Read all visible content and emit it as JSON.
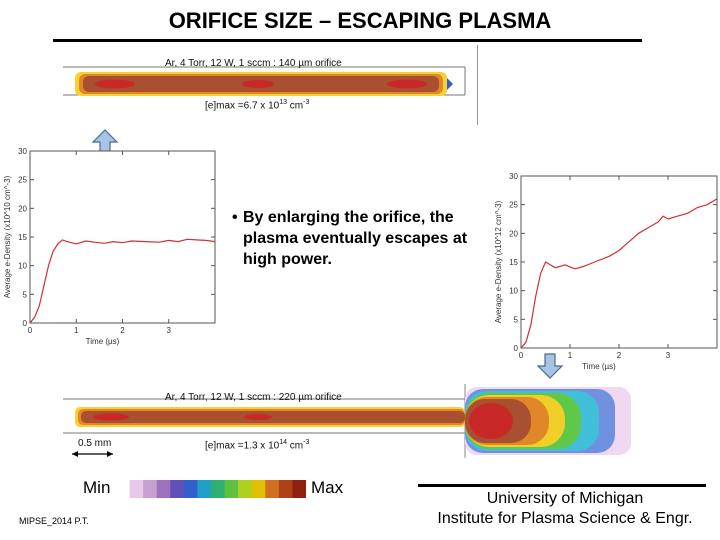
{
  "title": "ORIFICE SIZE – ESCAPING PLASMA",
  "sim_top": {
    "label": "Ar, 4 Torr, 12 W, 1 sccm : 140 µm orifice",
    "emax_prefix": "[e]max =6.7 x 10",
    "emax_exp": "13",
    "emax_unit": " cm",
    "emax_unit_exp": "-3"
  },
  "sim_bottom": {
    "label": "Ar, 4 Torr, 12 W, 1 sccm : 220 µm orifice",
    "emax_prefix": "[e]max =1.3 x 10",
    "emax_exp": "14",
    "emax_unit": " cm",
    "emax_unit_exp": "-3",
    "scale_bar": "0.5 mm"
  },
  "bullet": {
    "symbol": "•",
    "text": "By enlarging the orifice, the plasma eventually escapes at high power."
  },
  "colorbar": {
    "min_label": "Min",
    "max_label": "Max",
    "colors": [
      "#ffffff",
      "#e8c8e8",
      "#c8a0d0",
      "#a070c0",
      "#6050b8",
      "#3060d0",
      "#20a0c8",
      "#30b070",
      "#60c040",
      "#b0d020",
      "#e0c000",
      "#d07020",
      "#b04018",
      "#902010"
    ]
  },
  "chart_data": [
    {
      "type": "line",
      "title": "",
      "xlabel": "Time (µs)",
      "ylabel": "Average e-Density (x10^10 cm^-3)",
      "xlim": [
        0,
        4
      ],
      "ylim": [
        0,
        30
      ],
      "x_ticks": [
        0,
        1,
        2,
        3
      ],
      "y_ticks": [
        0,
        5,
        10,
        15,
        20,
        25,
        30
      ],
      "color": "#d03030",
      "x": [
        0,
        0.1,
        0.2,
        0.3,
        0.4,
        0.5,
        0.6,
        0.7,
        0.8,
        1.0,
        1.2,
        1.4,
        1.6,
        1.8,
        2.0,
        2.2,
        2.5,
        2.8,
        3.0,
        3.2,
        3.4,
        3.6,
        3.8,
        4.0
      ],
      "y": [
        0,
        1,
        3,
        6.5,
        10,
        12.5,
        13.8,
        14.5,
        14.2,
        13.8,
        14.3,
        14.1,
        13.9,
        14.2,
        14.0,
        14.3,
        14.2,
        14.1,
        14.4,
        14.2,
        14.6,
        14.5,
        14.4,
        14.2
      ]
    },
    {
      "type": "line",
      "title": "",
      "xlabel": "Time (µs)",
      "ylabel": "Average e-Density (x10^12 cm^-3)",
      "xlim": [
        0,
        4
      ],
      "ylim": [
        0,
        30
      ],
      "x_ticks": [
        0,
        1,
        2,
        3
      ],
      "y_ticks": [
        0,
        5,
        10,
        15,
        20,
        25,
        30
      ],
      "color": "#d03030",
      "x": [
        0,
        0.1,
        0.2,
        0.3,
        0.4,
        0.5,
        0.6,
        0.7,
        0.9,
        1.1,
        1.3,
        1.5,
        1.8,
        2.0,
        2.2,
        2.4,
        2.6,
        2.8,
        2.9,
        3.0,
        3.2,
        3.4,
        3.6,
        3.8,
        4.0
      ],
      "y": [
        0,
        1,
        4,
        9,
        13,
        15,
        14.5,
        14,
        14.5,
        13.8,
        14.3,
        15,
        16,
        17,
        18.5,
        20,
        21,
        22,
        23,
        22.5,
        23,
        23.5,
        24.5,
        25,
        26
      ]
    }
  ],
  "footer": {
    "id": "MIPSE_2014 P.T.",
    "inst_line1": "University of Michigan",
    "inst_line2": "Institute for Plasma Science & Engr."
  }
}
